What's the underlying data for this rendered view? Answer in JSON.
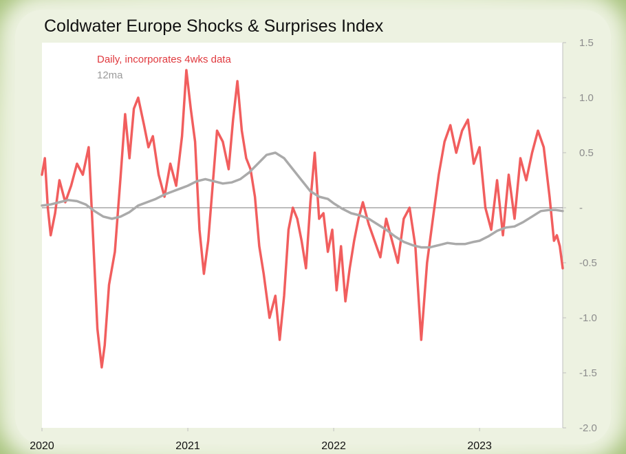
{
  "chart_data": {
    "type": "line",
    "title": "Coldwater Europe Shocks & Surprises Index",
    "ylim": [
      -2.0,
      1.5
    ],
    "y_ticks": [
      1.5,
      1.0,
      0.5,
      0,
      -0.5,
      -1.0,
      -1.5,
      -2.0
    ],
    "y_tick_labels": [
      "1.5",
      "1.0",
      "0.5",
      "-",
      "-0.5",
      "-1.0",
      "-1.5",
      "-2.0"
    ],
    "x_range": [
      2020.0,
      2023.57
    ],
    "x_ticks": [
      2020,
      2021,
      2022,
      2023
    ],
    "x_tick_labels": [
      "2020",
      "2021",
      "2022",
      "2023"
    ],
    "zero_line": true,
    "grid": false,
    "legend_placement": "top-left",
    "colors": {
      "daily": "#f05050",
      "ma": "#aaaaaa"
    },
    "series": [
      {
        "name": "Daily, incorporates 4wks data",
        "x": [
          2020.0,
          2020.02,
          2020.04,
          2020.06,
          2020.09,
          2020.12,
          2020.16,
          2020.2,
          2020.24,
          2020.28,
          2020.32,
          2020.35,
          2020.38,
          2020.41,
          2020.43,
          2020.46,
          2020.5,
          2020.54,
          2020.57,
          2020.6,
          2020.63,
          2020.66,
          2020.7,
          2020.73,
          2020.76,
          2020.8,
          2020.84,
          2020.88,
          2020.92,
          2020.96,
          2020.99,
          2021.02,
          2021.05,
          2021.08,
          2021.11,
          2021.14,
          2021.17,
          2021.2,
          2021.24,
          2021.28,
          2021.31,
          2021.34,
          2021.37,
          2021.4,
          2021.43,
          2021.46,
          2021.49,
          2021.52,
          2021.56,
          2021.6,
          2021.63,
          2021.66,
          2021.69,
          2021.72,
          2021.75,
          2021.78,
          2021.81,
          2021.84,
          2021.87,
          2021.9,
          2021.93,
          2021.96,
          2021.99,
          2022.02,
          2022.05,
          2022.08,
          2022.11,
          2022.14,
          2022.17,
          2022.2,
          2022.24,
          2022.28,
          2022.32,
          2022.36,
          2022.4,
          2022.44,
          2022.48,
          2022.52,
          2022.56,
          2022.6,
          2022.64,
          2022.68,
          2022.72,
          2022.76,
          2022.8,
          2022.84,
          2022.88,
          2022.92,
          2022.96,
          2023.0,
          2023.04,
          2023.08,
          2023.12,
          2023.16,
          2023.2,
          2023.24,
          2023.28,
          2023.32,
          2023.36,
          2023.4,
          2023.44,
          2023.48,
          2023.51,
          2023.53,
          2023.55,
          2023.57
        ],
        "y": [
          0.3,
          0.45,
          0.0,
          -0.25,
          -0.05,
          0.25,
          0.05,
          0.2,
          0.4,
          0.3,
          0.55,
          -0.25,
          -1.1,
          -1.45,
          -1.25,
          -0.7,
          -0.4,
          0.3,
          0.85,
          0.45,
          0.9,
          1.0,
          0.75,
          0.55,
          0.65,
          0.3,
          0.1,
          0.4,
          0.2,
          0.65,
          1.25,
          0.9,
          0.6,
          -0.2,
          -0.6,
          -0.3,
          0.2,
          0.7,
          0.6,
          0.35,
          0.8,
          1.15,
          0.7,
          0.45,
          0.35,
          0.1,
          -0.35,
          -0.6,
          -1.0,
          -0.8,
          -1.2,
          -0.8,
          -0.2,
          0.0,
          -0.1,
          -0.3,
          -0.55,
          0.05,
          0.5,
          -0.1,
          -0.05,
          -0.4,
          -0.2,
          -0.75,
          -0.35,
          -0.85,
          -0.55,
          -0.3,
          -0.1,
          0.05,
          -0.15,
          -0.3,
          -0.45,
          -0.1,
          -0.3,
          -0.5,
          -0.1,
          0.0,
          -0.35,
          -1.2,
          -0.5,
          -0.1,
          0.3,
          0.6,
          0.75,
          0.5,
          0.7,
          0.8,
          0.4,
          0.55,
          0.0,
          -0.2,
          0.25,
          -0.25,
          0.3,
          -0.1,
          0.45,
          0.25,
          0.5,
          0.7,
          0.55,
          0.1,
          -0.3,
          -0.25,
          -0.35,
          -0.55
        ]
      },
      {
        "name": "12ma",
        "x": [
          2020.0,
          2020.06,
          2020.12,
          2020.18,
          2020.24,
          2020.3,
          2020.36,
          2020.42,
          2020.48,
          2020.54,
          2020.6,
          2020.66,
          2020.72,
          2020.78,
          2020.84,
          2020.9,
          2020.96,
          2021.0,
          2021.06,
          2021.12,
          2021.18,
          2021.24,
          2021.3,
          2021.36,
          2021.42,
          2021.48,
          2021.54,
          2021.6,
          2021.66,
          2021.72,
          2021.78,
          2021.84,
          2021.9,
          2021.96,
          2022.0,
          2022.06,
          2022.12,
          2022.18,
          2022.24,
          2022.3,
          2022.36,
          2022.42,
          2022.48,
          2022.54,
          2022.6,
          2022.66,
          2022.72,
          2022.78,
          2022.84,
          2022.9,
          2022.96,
          2023.0,
          2023.06,
          2023.12,
          2023.18,
          2023.24,
          2023.3,
          2023.36,
          2023.42,
          2023.48,
          2023.52,
          2023.57
        ],
        "y": [
          0.02,
          0.03,
          0.05,
          0.07,
          0.06,
          0.03,
          -0.03,
          -0.08,
          -0.1,
          -0.08,
          -0.04,
          0.02,
          0.05,
          0.08,
          0.12,
          0.15,
          0.18,
          0.2,
          0.24,
          0.26,
          0.24,
          0.22,
          0.23,
          0.26,
          0.32,
          0.4,
          0.48,
          0.5,
          0.45,
          0.35,
          0.25,
          0.15,
          0.1,
          0.08,
          0.04,
          -0.01,
          -0.05,
          -0.07,
          -0.1,
          -0.15,
          -0.2,
          -0.26,
          -0.31,
          -0.34,
          -0.36,
          -0.36,
          -0.34,
          -0.32,
          -0.33,
          -0.33,
          -0.31,
          -0.3,
          -0.26,
          -0.21,
          -0.18,
          -0.17,
          -0.13,
          -0.08,
          -0.03,
          -0.02,
          -0.02,
          -0.03
        ]
      }
    ]
  }
}
